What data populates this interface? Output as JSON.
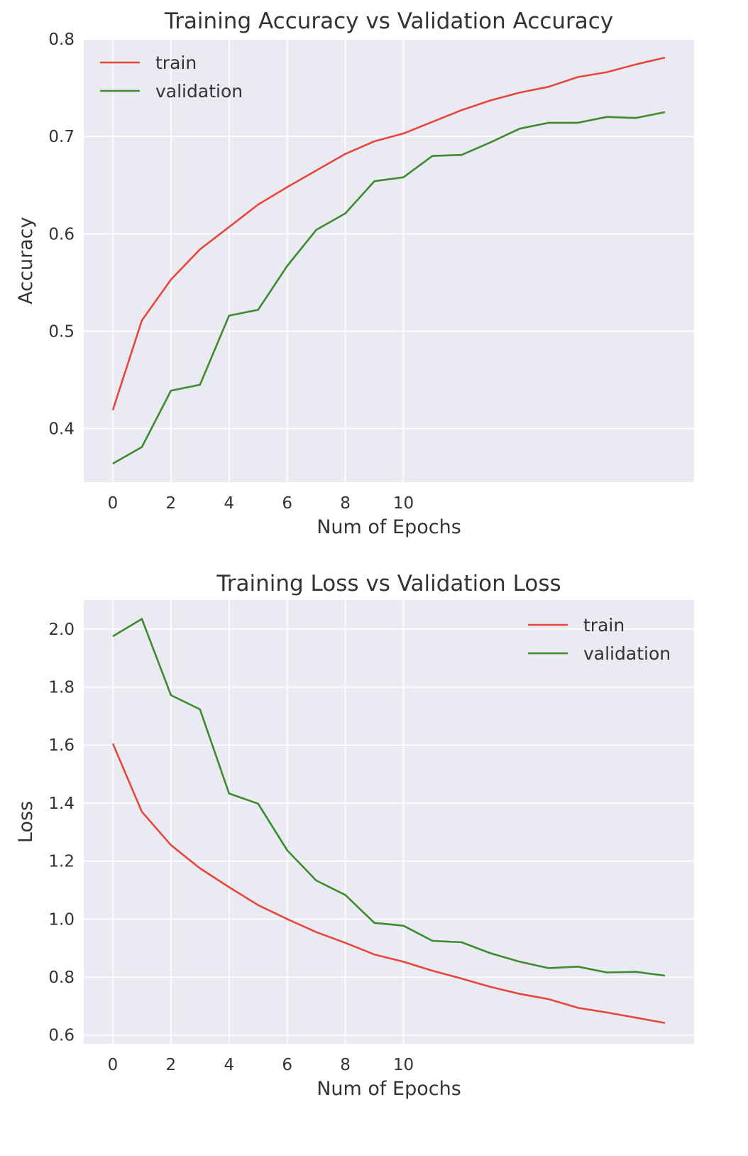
{
  "style": {
    "panel_bg": "#eaeaf2",
    "grid_color": "#ffffff",
    "train_color": "#e8463c",
    "validation_color": "#3d8b2f"
  },
  "chart_data": [
    {
      "type": "line",
      "title": "Training Accuracy vs Validation Accuracy",
      "xlabel": "Num of Epochs",
      "ylabel": "Accuracy",
      "xlim": [
        -1,
        20
      ],
      "ylim": [
        0.345,
        0.8
      ],
      "xticks": [
        0,
        2,
        4,
        6,
        8,
        10
      ],
      "yticks": [
        0.4,
        0.5,
        0.6,
        0.7,
        0.8
      ],
      "ytick_labels": [
        "0.4",
        "0.5",
        "0.6",
        "0.7",
        "0.8"
      ],
      "grid": true,
      "legend_position": "upper left",
      "x": [
        0,
        1,
        2,
        3,
        4,
        5,
        6,
        7,
        8,
        9,
        10,
        11,
        12,
        13,
        14,
        15,
        16,
        17,
        18,
        19
      ],
      "series": [
        {
          "name": "train",
          "color_key": "train_color",
          "values": [
            0.419,
            0.511,
            0.553,
            0.584,
            0.607,
            0.63,
            0.648,
            0.665,
            0.682,
            0.695,
            0.703,
            0.715,
            0.727,
            0.737,
            0.745,
            0.751,
            0.761,
            0.766,
            0.774,
            0.781
          ]
        },
        {
          "name": "validation",
          "color_key": "validation_color",
          "values": [
            0.364,
            0.381,
            0.439,
            0.445,
            0.516,
            0.522,
            0.567,
            0.604,
            0.621,
            0.654,
            0.658,
            0.68,
            0.681,
            0.694,
            0.708,
            0.714,
            0.714,
            0.72,
            0.719,
            0.725
          ]
        }
      ]
    },
    {
      "type": "line",
      "title": "Training Loss vs Validation Loss",
      "xlabel": "Num of Epochs",
      "ylabel": "Loss",
      "xlim": [
        -1,
        20
      ],
      "ylim": [
        0.57,
        2.1
      ],
      "xticks": [
        0,
        2,
        4,
        6,
        8,
        10
      ],
      "yticks": [
        0.6,
        0.8,
        1.0,
        1.2,
        1.4,
        1.6,
        1.8,
        2.0
      ],
      "ytick_labels": [
        "0.6",
        "0.8",
        "1.0",
        "1.2",
        "1.4",
        "1.6",
        "1.8",
        "2.0"
      ],
      "grid": true,
      "legend_position": "upper right",
      "x": [
        0,
        1,
        2,
        3,
        4,
        5,
        6,
        7,
        8,
        9,
        10,
        11,
        12,
        13,
        14,
        15,
        16,
        17,
        18,
        19
      ],
      "series": [
        {
          "name": "train",
          "color_key": "train_color",
          "values": [
            1.605,
            1.37,
            1.255,
            1.175,
            1.11,
            1.048,
            1.0,
            0.955,
            0.918,
            0.878,
            0.853,
            0.822,
            0.795,
            0.766,
            0.742,
            0.724,
            0.694,
            0.678,
            0.66,
            0.642
          ]
        },
        {
          "name": "validation",
          "color_key": "validation_color",
          "values": [
            1.975,
            2.035,
            1.772,
            1.723,
            1.433,
            1.398,
            1.237,
            1.133,
            1.083,
            0.987,
            0.977,
            0.925,
            0.92,
            0.882,
            0.853,
            0.831,
            0.836,
            0.816,
            0.818,
            0.805
          ]
        }
      ]
    }
  ]
}
